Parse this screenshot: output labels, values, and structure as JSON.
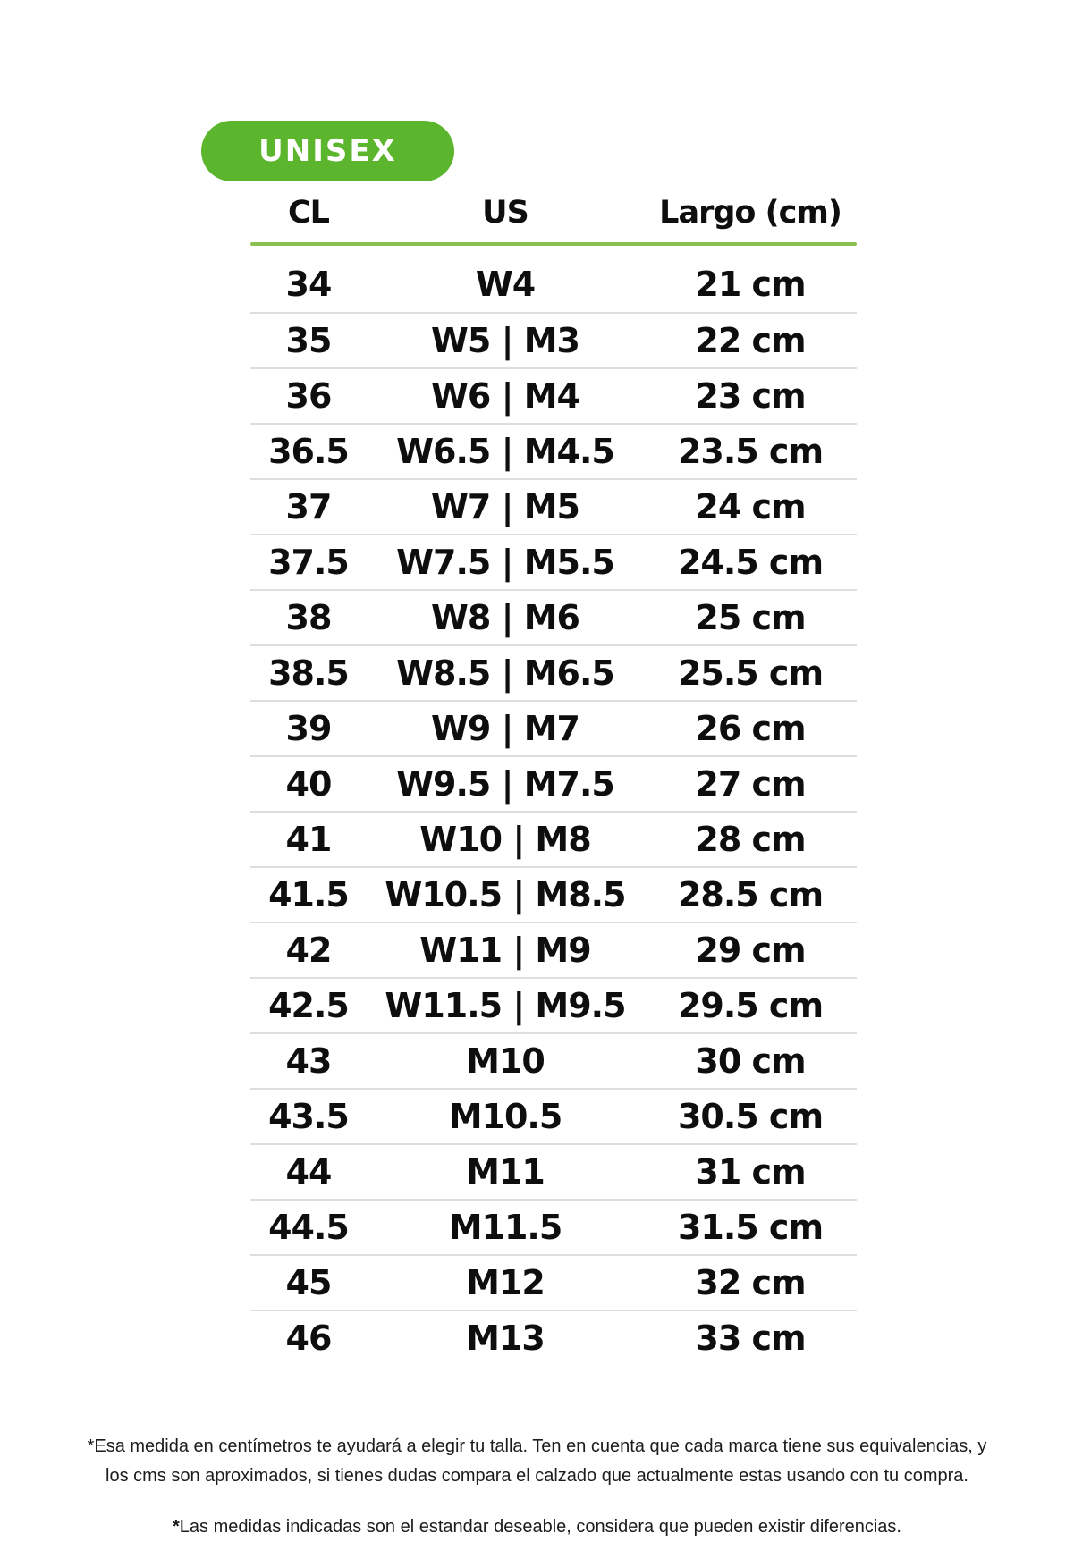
{
  "badge": {
    "label": "UNISEX"
  },
  "table": {
    "columns": [
      "CL",
      "US",
      "Largo (cm)"
    ],
    "rows": [
      [
        "34",
        "W4",
        "21 cm"
      ],
      [
        "35",
        "W5 | M3",
        "22 cm"
      ],
      [
        "36",
        "W6 | M4",
        "23 cm"
      ],
      [
        "36.5",
        "W6.5 | M4.5",
        "23.5 cm"
      ],
      [
        "37",
        "W7 | M5",
        "24 cm"
      ],
      [
        "37.5",
        "W7.5 | M5.5",
        "24.5 cm"
      ],
      [
        "38",
        "W8 | M6",
        "25 cm"
      ],
      [
        "38.5",
        "W8.5 | M6.5",
        "25.5 cm"
      ],
      [
        "39",
        "W9 | M7",
        "26 cm"
      ],
      [
        "40",
        "W9.5 | M7.5",
        "27 cm"
      ],
      [
        "41",
        "W10 | M8",
        "28 cm"
      ],
      [
        "41.5",
        "W10.5 | M8.5",
        "28.5 cm"
      ],
      [
        "42",
        "W11 | M9",
        "29 cm"
      ],
      [
        "42.5",
        "W11.5 | M9.5",
        "29.5 cm"
      ],
      [
        "43",
        "M10",
        "30 cm"
      ],
      [
        "43.5",
        "M10.5",
        "30.5 cm"
      ],
      [
        "44",
        "M11",
        "31 cm"
      ],
      [
        "44.5",
        "M11.5",
        "31.5 cm"
      ],
      [
        "45",
        "M12",
        "32 cm"
      ],
      [
        "46",
        "M13",
        "33 cm"
      ]
    ]
  },
  "footnotes": {
    "note1_line1": "*Esa medida en centímetros te ayudará a elegir tu talla. Ten en cuenta que cada marca tiene sus equivalencias, y",
    "note1_line2": "los cms son aproximados, si tienes dudas compara el calzado que actualmente estas usando con tu compra.",
    "note2_asterisk": "*",
    "note2_text": "Las medidas indicadas son el estandar deseable, considera que pueden existir diferencias."
  },
  "colors": {
    "badge_green": "#5bb52d",
    "underline_green": "#8cc152",
    "separator_gray": "#dedede",
    "text_black": "#0e0e0e"
  }
}
